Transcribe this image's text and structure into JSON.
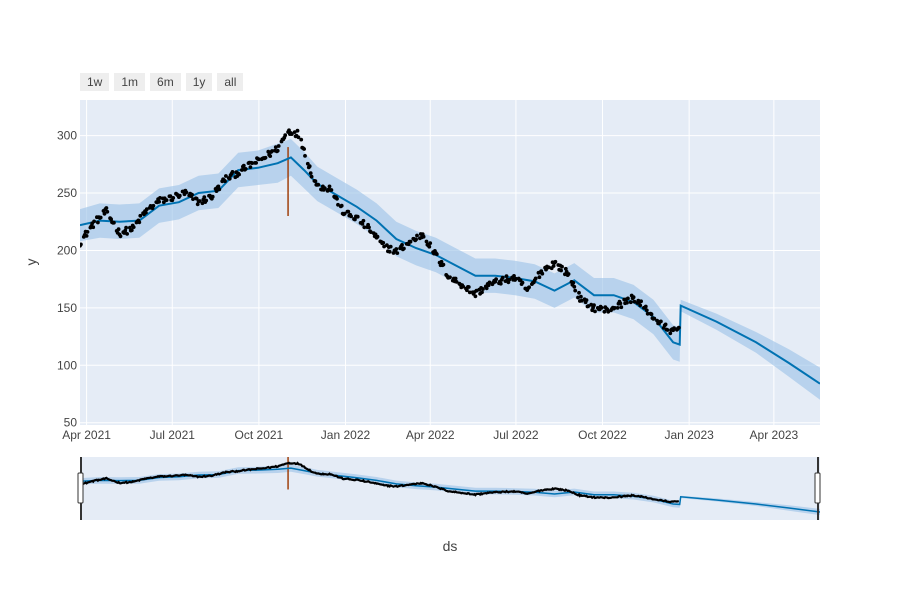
{
  "range_buttons": [
    {
      "label": "1w"
    },
    {
      "label": "1m"
    },
    {
      "label": "6m"
    },
    {
      "label": "1y"
    },
    {
      "label": "all"
    }
  ],
  "chart_data": {
    "type": "line",
    "title": "",
    "xlabel": "ds",
    "ylabel": "y",
    "xlim": [
      "2021-03-25",
      "2023-05-20"
    ],
    "ylim": [
      48,
      331
    ],
    "x_tick_labels": [
      "Apr 2021",
      "Jul 2021",
      "Oct 2021",
      "Jan 2022",
      "Apr 2022",
      "Jul 2022",
      "Oct 2022",
      "Jan 2023",
      "Apr 2023"
    ],
    "x_tick_dates": [
      "2021-04-01",
      "2021-07-01",
      "2021-10-01",
      "2022-01-01",
      "2022-04-01",
      "2022-07-01",
      "2022-10-01",
      "2023-01-01",
      "2023-04-01"
    ],
    "y_ticks": [
      50,
      100,
      150,
      200,
      250,
      300
    ],
    "grid": true,
    "colors": {
      "plot_bg": "#e5ecf6",
      "grid": "#ffffff",
      "forecast_line": "#0072b2",
      "uncertainty_band": "#9fc4e8",
      "observed_points": "#000000",
      "changepoint": "#a0410d",
      "range_mask": "#808080"
    },
    "forecast": {
      "name": "yhat",
      "x": [
        "2021-03-25",
        "2021-04-15",
        "2021-05-06",
        "2021-05-27",
        "2021-06-17",
        "2021-07-08",
        "2021-07-29",
        "2021-08-19",
        "2021-09-09",
        "2021-09-30",
        "2021-10-21",
        "2021-11-04",
        "2021-11-18",
        "2021-12-02",
        "2021-12-23",
        "2022-01-13",
        "2022-02-03",
        "2022-02-24",
        "2022-03-17",
        "2022-04-07",
        "2022-04-28",
        "2022-05-19",
        "2022-06-09",
        "2022-06-30",
        "2022-07-21",
        "2022-08-11",
        "2022-09-01",
        "2022-09-22",
        "2022-10-13",
        "2022-11-03",
        "2022-11-24",
        "2022-12-15",
        "2022-12-22",
        "2022-12-23",
        "2023-01-30",
        "2023-03-13",
        "2023-04-17",
        "2023-05-20"
      ],
      "y": [
        222,
        226,
        225,
        226,
        239,
        242,
        250,
        252,
        270,
        272,
        276,
        281,
        270,
        258,
        248,
        238,
        226,
        210,
        202,
        196,
        187,
        178,
        178,
        176,
        173,
        165,
        174,
        161,
        161,
        155,
        142,
        120,
        118,
        152,
        138,
        120,
        102,
        84
      ]
    },
    "uncertainty": {
      "name": "uncertainty interval",
      "x": [
        "2021-03-25",
        "2021-04-15",
        "2021-05-06",
        "2021-05-27",
        "2021-06-17",
        "2021-07-08",
        "2021-07-29",
        "2021-08-19",
        "2021-09-09",
        "2021-09-30",
        "2021-10-21",
        "2021-11-04",
        "2021-11-18",
        "2021-12-02",
        "2021-12-23",
        "2022-01-13",
        "2022-02-03",
        "2022-02-24",
        "2022-03-17",
        "2022-04-07",
        "2022-04-28",
        "2022-05-19",
        "2022-06-09",
        "2022-06-30",
        "2022-07-21",
        "2022-08-11",
        "2022-09-01",
        "2022-09-22",
        "2022-10-13",
        "2022-11-03",
        "2022-11-24",
        "2022-12-15",
        "2022-12-22",
        "2022-12-23",
        "2023-01-30",
        "2023-03-13",
        "2023-04-17",
        "2023-05-20"
      ],
      "upper": [
        236,
        241,
        240,
        241,
        254,
        257,
        265,
        267,
        285,
        287,
        293,
        297,
        286,
        273,
        263,
        253,
        241,
        225,
        217,
        211,
        202,
        193,
        193,
        191,
        188,
        180,
        189,
        176,
        176,
        170,
        157,
        135,
        133,
        157,
        145,
        129,
        114,
        98
      ],
      "lower": [
        208,
        211,
        210,
        211,
        224,
        227,
        235,
        237,
        255,
        257,
        259,
        265,
        254,
        243,
        233,
        223,
        211,
        195,
        187,
        181,
        172,
        163,
        163,
        161,
        158,
        150,
        159,
        146,
        146,
        140,
        127,
        105,
        103,
        147,
        131,
        111,
        90,
        70
      ]
    },
    "observed": {
      "name": "y",
      "anchors": [
        [
          "2021-03-25",
          207
        ],
        [
          "2021-04-08",
          223
        ],
        [
          "2021-04-22",
          234
        ],
        [
          "2021-05-06",
          215
        ],
        [
          "2021-05-20",
          219
        ],
        [
          "2021-06-03",
          234
        ],
        [
          "2021-06-17",
          243
        ],
        [
          "2021-07-01",
          246
        ],
        [
          "2021-07-15",
          250
        ],
        [
          "2021-07-29",
          242
        ],
        [
          "2021-08-12",
          247
        ],
        [
          "2021-08-26",
          262
        ],
        [
          "2021-09-09",
          268
        ],
        [
          "2021-09-23",
          275
        ],
        [
          "2021-10-07",
          281
        ],
        [
          "2021-10-21",
          289
        ],
        [
          "2021-11-01",
          304
        ],
        [
          "2021-11-11",
          302
        ],
        [
          "2021-11-18",
          288
        ],
        [
          "2021-11-25",
          269
        ],
        [
          "2021-12-02",
          256
        ],
        [
          "2021-12-16",
          254
        ],
        [
          "2021-12-30",
          233
        ],
        [
          "2022-01-13",
          228
        ],
        [
          "2022-01-27",
          218
        ],
        [
          "2022-02-10",
          204
        ],
        [
          "2022-02-24",
          199
        ],
        [
          "2022-03-10",
          207
        ],
        [
          "2022-03-24",
          214
        ],
        [
          "2022-04-07",
          196
        ],
        [
          "2022-04-21",
          177
        ],
        [
          "2022-05-05",
          170
        ],
        [
          "2022-05-19",
          162
        ],
        [
          "2022-06-02",
          170
        ],
        [
          "2022-06-16",
          174
        ],
        [
          "2022-06-30",
          176
        ],
        [
          "2022-07-14",
          165
        ],
        [
          "2022-07-28",
          182
        ],
        [
          "2022-08-11",
          189
        ],
        [
          "2022-08-25",
          180
        ],
        [
          "2022-09-08",
          157
        ],
        [
          "2022-09-22",
          150
        ],
        [
          "2022-10-06",
          148
        ],
        [
          "2022-10-20",
          153
        ],
        [
          "2022-11-03",
          159
        ],
        [
          "2022-11-17",
          148
        ],
        [
          "2022-12-01",
          136
        ],
        [
          "2022-12-15",
          129
        ],
        [
          "2022-12-22",
          132
        ]
      ]
    },
    "changepoints": {
      "name": "changepoint",
      "x": [
        "2021-11-01"
      ],
      "y_range": [
        230,
        290
      ]
    },
    "range_slider": {
      "visible_range": [
        "2021-03-25",
        "2023-05-20"
      ]
    }
  }
}
